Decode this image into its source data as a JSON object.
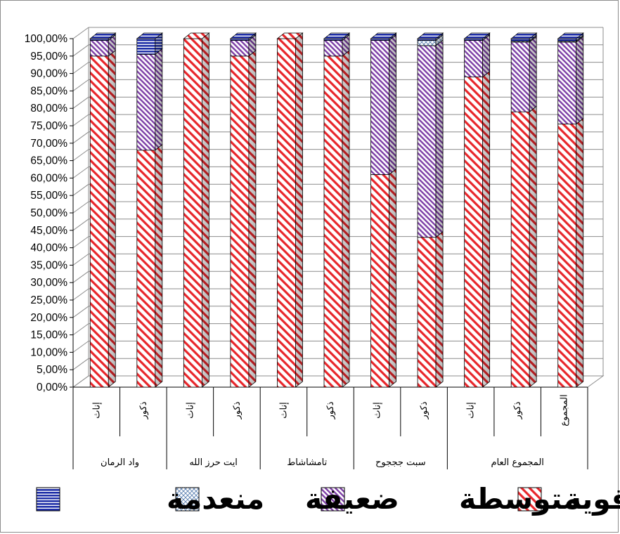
{
  "chart_data": {
    "type": "bar",
    "stacked": true,
    "three_d": true,
    "y_ticks": [
      "0,00%",
      "5,00%",
      "10,00%",
      "15,00%",
      "20,00%",
      "25,00%",
      "30,00%",
      "35,00%",
      "40,00%",
      "45,00%",
      "50,00%",
      "55,00%",
      "60,00%",
      "65,00%",
      "70,00%",
      "75,00%",
      "80,00%",
      "85,00%",
      "90,00%",
      "95,00%",
      "100,00%"
    ],
    "ylim": [
      0,
      100
    ],
    "grid": true,
    "legend_position": "bottom",
    "categories": [
      "إناث",
      "ذكور",
      "إناث",
      "ذكور",
      "إناث",
      "ذكور",
      "إناث",
      "ذكور",
      "إناث",
      "ذكور",
      "المجموع"
    ],
    "groups": [
      {
        "label": "واد الرمان",
        "span": 2
      },
      {
        "label": "ايت حرز الله",
        "span": 2
      },
      {
        "label": "تامشاشاط",
        "span": 2
      },
      {
        "label": "سبت جججوح",
        "span": 2
      },
      {
        "label": "المجموع العام",
        "span": 3
      }
    ],
    "series": [
      {
        "name": "قوية",
        "pattern": "diagonal-red",
        "color": "#e8262b",
        "values": [
          95,
          68,
          100,
          95,
          100,
          95,
          61,
          43,
          89,
          79,
          75.5
        ]
      },
      {
        "name": "متوسطة",
        "pattern": "diagonal-purple",
        "color": "#7d3fa6",
        "values": [
          4.5,
          27.5,
          0,
          4.5,
          0,
          4.5,
          38.5,
          55,
          10.5,
          20,
          23.5
        ]
      },
      {
        "name": "ضعيفة",
        "pattern": "crosshatch",
        "color": "#8fa8c8",
        "values": [
          0,
          0,
          0,
          0,
          0,
          0,
          0,
          1.5,
          0,
          0.3,
          0.3
        ]
      },
      {
        "name": "منعدمة",
        "pattern": "horizontal-blue",
        "color": "#1f2fa8",
        "values": [
          0.5,
          4.5,
          0,
          0.5,
          0,
          0.5,
          0.5,
          0.5,
          0.5,
          0.7,
          0.7
        ]
      }
    ]
  }
}
